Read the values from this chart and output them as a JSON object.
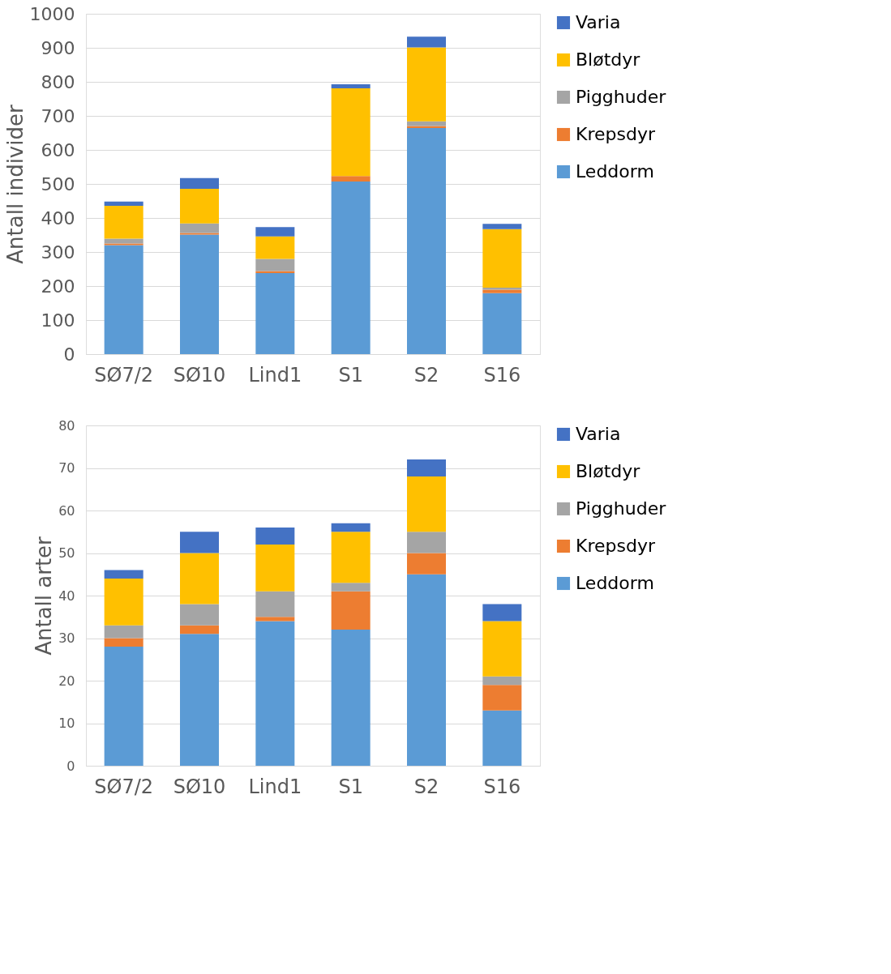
{
  "chart_data": [
    {
      "type": "bar",
      "stacked": true,
      "ylabel": "Antall individer",
      "categories": [
        "SØ7/2",
        "SØ10",
        "Lind1",
        "S1",
        "S2",
        "S16"
      ],
      "ylim": [
        0,
        1000
      ],
      "yticks": [
        0,
        100,
        200,
        300,
        400,
        500,
        600,
        700,
        800,
        900,
        1000
      ],
      "grid": "y",
      "legend": "right",
      "series": [
        {
          "name": "Leddorm",
          "color": "#5b9bd5",
          "values": [
            320,
            351,
            238,
            507,
            664,
            179
          ]
        },
        {
          "name": "Krepsdyr",
          "color": "#ed7d31",
          "values": [
            5,
            5,
            6,
            16,
            6,
            10
          ]
        },
        {
          "name": "Pigghuder",
          "color": "#a5a5a5",
          "values": [
            14,
            28,
            36,
            0,
            14,
            6
          ]
        },
        {
          "name": "Bløtdyr",
          "color": "#ffc000",
          "values": [
            97,
            102,
            66,
            258,
            217,
            172
          ]
        },
        {
          "name": "Varia",
          "color": "#4472c4",
          "values": [
            12,
            31,
            27,
            12,
            32,
            16
          ]
        }
      ]
    },
    {
      "type": "bar",
      "stacked": true,
      "ylabel": "Antall arter",
      "categories": [
        "SØ7/2",
        "SØ10",
        "Lind1",
        "S1",
        "S2",
        "S16"
      ],
      "ylim": [
        0,
        80
      ],
      "yticks": [
        0,
        10,
        20,
        30,
        40,
        50,
        60,
        70,
        80
      ],
      "grid": "y",
      "legend": "right",
      "series": [
        {
          "name": "Leddorm",
          "color": "#5b9bd5",
          "values": [
            28,
            31,
            34,
            32,
            45,
            13
          ]
        },
        {
          "name": "Krepsdyr",
          "color": "#ed7d31",
          "values": [
            2,
            2,
            1,
            9,
            5,
            6
          ]
        },
        {
          "name": "Pigghuder",
          "color": "#a5a5a5",
          "values": [
            3,
            5,
            6,
            2,
            5,
            2
          ]
        },
        {
          "name": "Bløtdyr",
          "color": "#ffc000",
          "values": [
            11,
            12,
            11,
            12,
            13,
            13
          ]
        },
        {
          "name": "Varia",
          "color": "#4472c4",
          "values": [
            2,
            5,
            4,
            2,
            4,
            4
          ]
        }
      ]
    }
  ]
}
